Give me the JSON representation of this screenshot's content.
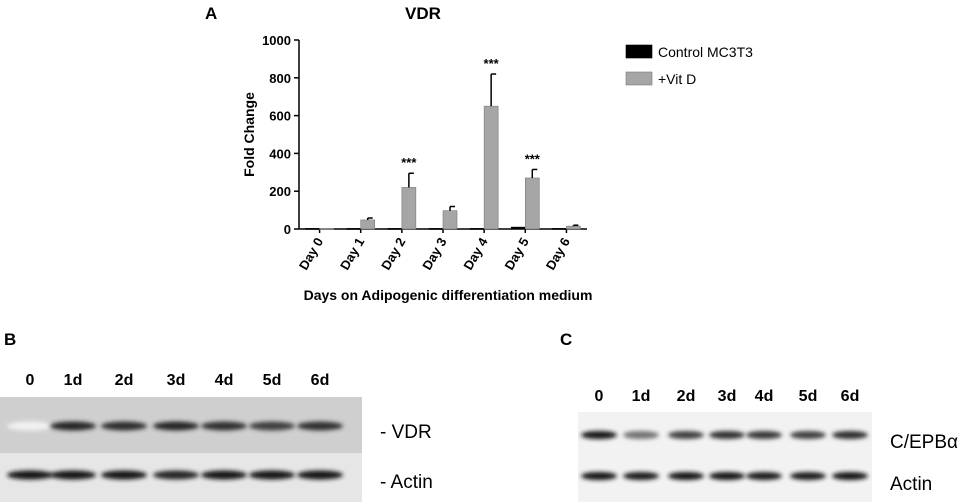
{
  "panel_a": {
    "letter": "A",
    "chart_data": {
      "type": "bar",
      "title": "VDR",
      "xlabel": "Days on Adipogenic differentiation medium",
      "ylabel": "Fold Change",
      "categories": [
        "Day 0",
        "Day 1",
        "Day 2",
        "Day 3",
        "Day 4",
        "Day 5",
        "Day 6"
      ],
      "ylim": [
        0,
        1000
      ],
      "yticks": [
        0,
        200,
        400,
        600,
        800,
        1000
      ],
      "series": [
        {
          "name": "Control MC3T3",
          "color": "#000000",
          "values": [
            3,
            3,
            3,
            3,
            3,
            10,
            3
          ],
          "errors": [
            0,
            0,
            0,
            0,
            0,
            0,
            0
          ]
        },
        {
          "name": "+Vit D",
          "color": "#a6a6a6",
          "values": [
            3,
            48,
            220,
            97,
            650,
            270,
            15
          ],
          "errors": [
            0,
            10,
            75,
            22,
            170,
            45,
            5
          ]
        }
      ],
      "annotations": [
        {
          "category": "Day 2",
          "text": "***"
        },
        {
          "category": "Day 4",
          "text": "***"
        },
        {
          "category": "Day 5",
          "text": "***"
        }
      ],
      "legend_position": "top-right",
      "grid": false
    }
  },
  "panel_b": {
    "letter": "B",
    "lanes": [
      "0",
      "1d",
      "2d",
      "3d",
      "4d",
      "5d",
      "6d"
    ],
    "bands": [
      {
        "label": "- VDR",
        "intensities": [
          0.05,
          0.85,
          0.82,
          0.85,
          0.8,
          0.75,
          0.8
        ]
      },
      {
        "label": "- Actin",
        "intensities": [
          0.9,
          0.9,
          0.9,
          0.85,
          0.9,
          0.9,
          0.92
        ]
      }
    ]
  },
  "panel_c": {
    "letter": "C",
    "lanes": [
      "0",
      "1d",
      "2d",
      "3d",
      "4d",
      "5d",
      "6d"
    ],
    "bands": [
      {
        "label": "C/EPBα",
        "intensities": [
          0.92,
          0.55,
          0.75,
          0.8,
          0.78,
          0.75,
          0.82
        ]
      },
      {
        "label": "Actin",
        "intensities": [
          0.9,
          0.88,
          0.9,
          0.9,
          0.88,
          0.88,
          0.9
        ]
      }
    ]
  }
}
